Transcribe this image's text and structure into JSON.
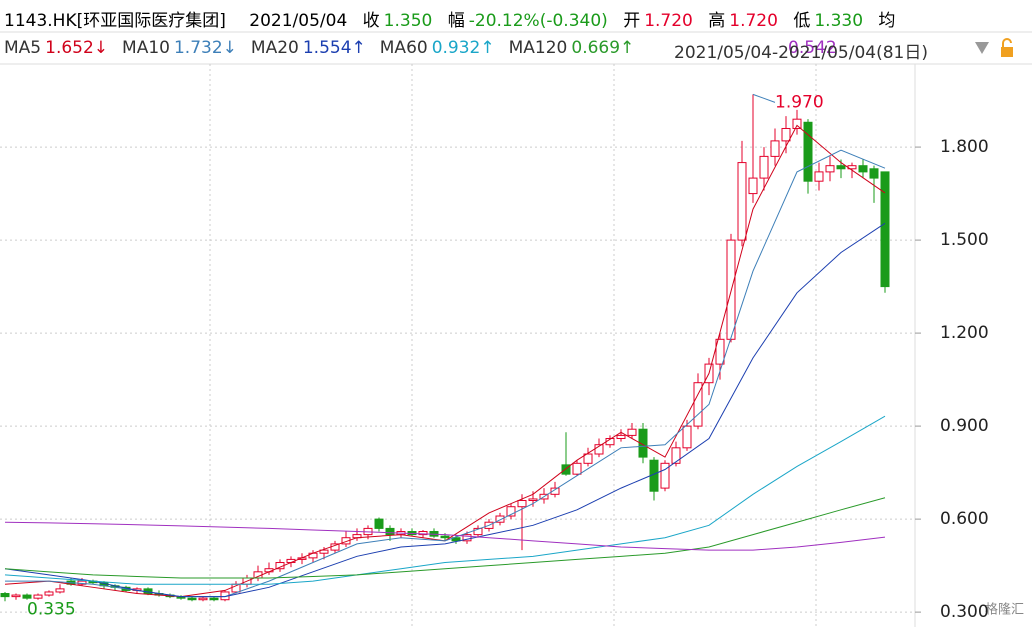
{
  "header": {
    "title": "1143.HK[环亚国际医疗集团]",
    "date": "2021/05/04",
    "close_label": "收",
    "close": "1.350",
    "change_label": "幅",
    "change": "-20.12%(-0.340)",
    "open_label": "开",
    "open": "1.720",
    "high_label": "高",
    "high": "1.720",
    "low_label": "低",
    "low": "1.330",
    "avg_label": "均",
    "range": "2021/05/04-2021/05/04(81日)"
  },
  "chart_data": {
    "type": "candlestick",
    "up_color": "#e4002b",
    "down_color": "#1a9b1a",
    "ylim": [
      0.252,
      2.068
    ],
    "yticks": [
      {
        "value": 0.3,
        "label": "0.300"
      },
      {
        "value": 0.6,
        "label": "0.600"
      },
      {
        "value": 0.9,
        "label": "0.900"
      },
      {
        "value": 1.2,
        "label": "1.200"
      },
      {
        "value": 1.5,
        "label": "1.500"
      },
      {
        "value": 1.8,
        "label": "1.800"
      }
    ],
    "grid": true,
    "annotations": [
      {
        "text": "1.970",
        "value": 1.97,
        "index": 68,
        "color": "#e4002b"
      },
      {
        "text": "0.335",
        "value": 0.335,
        "index": 0,
        "color": "#1a9b1a"
      }
    ],
    "candles": [
      [
        0.36,
        0.365,
        0.335,
        0.35
      ],
      [
        0.35,
        0.36,
        0.34,
        0.355
      ],
      [
        0.355,
        0.36,
        0.34,
        0.345
      ],
      [
        0.345,
        0.36,
        0.34,
        0.355
      ],
      [
        0.355,
        0.37,
        0.35,
        0.365
      ],
      [
        0.365,
        0.39,
        0.36,
        0.375
      ],
      [
        0.4,
        0.41,
        0.385,
        0.39
      ],
      [
        0.39,
        0.41,
        0.385,
        0.4
      ],
      [
        0.4,
        0.405,
        0.39,
        0.395
      ],
      [
        0.395,
        0.4,
        0.375,
        0.385
      ],
      [
        0.385,
        0.39,
        0.37,
        0.38
      ],
      [
        0.38,
        0.385,
        0.365,
        0.37
      ],
      [
        0.37,
        0.38,
        0.36,
        0.375
      ],
      [
        0.375,
        0.38,
        0.355,
        0.36
      ],
      [
        0.36,
        0.37,
        0.35,
        0.355
      ],
      [
        0.355,
        0.36,
        0.345,
        0.35
      ],
      [
        0.35,
        0.355,
        0.34,
        0.345
      ],
      [
        0.345,
        0.35,
        0.335,
        0.34
      ],
      [
        0.34,
        0.35,
        0.335,
        0.345
      ],
      [
        0.345,
        0.35,
        0.335,
        0.34
      ],
      [
        0.34,
        0.37,
        0.335,
        0.365
      ],
      [
        0.365,
        0.4,
        0.36,
        0.39
      ],
      [
        0.39,
        0.42,
        0.38,
        0.41
      ],
      [
        0.41,
        0.45,
        0.4,
        0.43
      ],
      [
        0.43,
        0.46,
        0.42,
        0.44
      ],
      [
        0.44,
        0.47,
        0.43,
        0.46
      ],
      [
        0.46,
        0.48,
        0.445,
        0.47
      ],
      [
        0.47,
        0.49,
        0.455,
        0.475
      ],
      [
        0.475,
        0.5,
        0.46,
        0.49
      ],
      [
        0.49,
        0.51,
        0.47,
        0.5
      ],
      [
        0.5,
        0.53,
        0.49,
        0.52
      ],
      [
        0.52,
        0.56,
        0.51,
        0.54
      ],
      [
        0.54,
        0.57,
        0.53,
        0.55
      ],
      [
        0.55,
        0.58,
        0.535,
        0.57
      ],
      [
        0.6,
        0.605,
        0.56,
        0.57
      ],
      [
        0.57,
        0.58,
        0.53,
        0.55
      ],
      [
        0.55,
        0.57,
        0.54,
        0.56
      ],
      [
        0.56,
        0.57,
        0.545,
        0.55
      ],
      [
        0.55,
        0.565,
        0.54,
        0.56
      ],
      [
        0.56,
        0.57,
        0.54,
        0.545
      ],
      [
        0.545,
        0.555,
        0.53,
        0.54
      ],
      [
        0.54,
        0.55,
        0.52,
        0.53
      ],
      [
        0.53,
        0.56,
        0.52,
        0.55
      ],
      [
        0.55,
        0.58,
        0.54,
        0.57
      ],
      [
        0.57,
        0.6,
        0.56,
        0.59
      ],
      [
        0.59,
        0.62,
        0.58,
        0.61
      ],
      [
        0.61,
        0.65,
        0.6,
        0.64
      ],
      [
        0.64,
        0.68,
        0.5,
        0.66
      ],
      [
        0.66,
        0.69,
        0.64,
        0.665
      ],
      [
        0.665,
        0.7,
        0.65,
        0.68
      ],
      [
        0.68,
        0.72,
        0.67,
        0.7
      ],
      [
        0.775,
        0.88,
        0.74,
        0.745
      ],
      [
        0.745,
        0.79,
        0.74,
        0.78
      ],
      [
        0.78,
        0.83,
        0.77,
        0.81
      ],
      [
        0.81,
        0.86,
        0.8,
        0.84
      ],
      [
        0.84,
        0.87,
        0.83,
        0.86
      ],
      [
        0.86,
        0.89,
        0.85,
        0.87
      ],
      [
        0.87,
        0.91,
        0.86,
        0.89
      ],
      [
        0.89,
        0.91,
        0.78,
        0.8
      ],
      [
        0.79,
        0.8,
        0.66,
        0.69
      ],
      [
        0.7,
        0.79,
        0.69,
        0.78
      ],
      [
        0.78,
        0.85,
        0.77,
        0.83
      ],
      [
        0.83,
        0.92,
        0.82,
        0.9
      ],
      [
        0.9,
        1.07,
        0.89,
        1.04
      ],
      [
        1.04,
        1.12,
        1.0,
        1.1
      ],
      [
        1.1,
        1.2,
        1.05,
        1.18
      ],
      [
        1.18,
        1.52,
        1.17,
        1.5
      ],
      [
        1.5,
        1.82,
        1.48,
        1.75
      ],
      [
        1.65,
        1.97,
        1.62,
        1.7
      ],
      [
        1.7,
        1.8,
        1.66,
        1.77
      ],
      [
        1.77,
        1.86,
        1.74,
        1.82
      ],
      [
        1.82,
        1.9,
        1.78,
        1.86
      ],
      [
        1.86,
        1.92,
        1.84,
        1.89
      ],
      [
        1.88,
        1.89,
        1.65,
        1.69
      ],
      [
        1.69,
        1.75,
        1.66,
        1.72
      ],
      [
        1.72,
        1.77,
        1.69,
        1.74
      ],
      [
        1.74,
        1.76,
        1.7,
        1.73
      ],
      [
        1.73,
        1.75,
        1.7,
        1.74
      ],
      [
        1.74,
        1.76,
        1.7,
        1.72
      ],
      [
        1.73,
        1.74,
        1.62,
        1.7
      ],
      [
        1.72,
        1.72,
        1.33,
        1.35
      ]
    ],
    "ma_x": [
      0,
      4,
      8,
      12,
      16,
      20,
      24,
      28,
      32,
      36,
      40,
      44,
      48,
      52,
      56,
      60,
      64,
      68,
      72,
      76,
      80
    ],
    "series": [
      {
        "name": "MA5",
        "color": "#d0021b",
        "label": "1.652↓",
        "values": [
          0.39,
          0.4,
          0.38,
          0.36,
          0.35,
          0.37,
          0.43,
          0.49,
          0.54,
          0.55,
          0.53,
          0.62,
          0.68,
          0.79,
          0.88,
          0.8,
          1.07,
          1.6,
          1.87,
          1.75,
          1.652
        ]
      },
      {
        "name": "MA10",
        "color": "#3d7fb8",
        "label": "1.732↓",
        "values": [
          0.4,
          0.4,
          0.39,
          0.37,
          0.35,
          0.35,
          0.4,
          0.46,
          0.52,
          0.54,
          0.53,
          0.58,
          0.65,
          0.74,
          0.83,
          0.84,
          0.97,
          1.4,
          1.72,
          1.79,
          1.732
        ]
      },
      {
        "name": "MA20",
        "color": "#1c3fb0",
        "label": "1.554↑",
        "values": [
          0.44,
          0.42,
          0.4,
          0.37,
          0.35,
          0.35,
          0.38,
          0.43,
          0.48,
          0.51,
          0.52,
          0.55,
          0.58,
          0.63,
          0.7,
          0.76,
          0.86,
          1.12,
          1.33,
          1.46,
          1.554
        ]
      },
      {
        "name": "MA60",
        "color": "#1aa6c8",
        "label": "0.932↑",
        "values": [
          0.42,
          0.41,
          0.4,
          0.39,
          0.39,
          0.39,
          0.39,
          0.4,
          0.42,
          0.44,
          0.46,
          0.47,
          0.48,
          0.5,
          0.52,
          0.54,
          0.58,
          0.68,
          0.77,
          0.85,
          0.932
        ]
      },
      {
        "name": "MA120",
        "color": "#2a9a2a",
        "label": "0.669↑",
        "values": [
          0.44,
          0.43,
          0.42,
          0.415,
          0.41,
          0.41,
          0.41,
          0.415,
          0.42,
          0.43,
          0.44,
          0.45,
          0.46,
          0.47,
          0.48,
          0.49,
          0.51,
          0.55,
          0.59,
          0.63,
          0.669
        ]
      },
      {
        "color": "#a030c0",
        "label": "0.542",
        "values": [
          0.59,
          0.588,
          0.585,
          0.582,
          0.578,
          0.574,
          0.57,
          0.565,
          0.56,
          0.555,
          0.55,
          0.54,
          0.53,
          0.52,
          0.51,
          0.505,
          0.5,
          0.5,
          0.51,
          0.525,
          0.542
        ]
      }
    ]
  }
}
